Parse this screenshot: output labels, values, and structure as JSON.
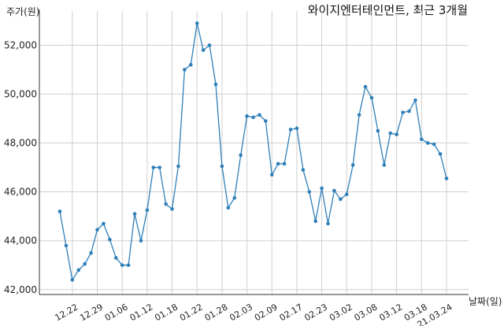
{
  "chart_data": {
    "type": "line",
    "title": "와이지엔터테인먼트, 최근 3개월",
    "ylabel": "주가(원)",
    "xlabel": "날짜(일)",
    "ylim": [
      41800,
      53400
    ],
    "yticks": [
      42000,
      44000,
      46000,
      48000,
      50000,
      52000
    ],
    "ytick_labels": [
      "42,000",
      "44,000",
      "46,000",
      "48,000",
      "50,000",
      "52,000"
    ],
    "xticks": [
      {
        "index": 2,
        "label": "12.22"
      },
      {
        "index": 6,
        "label": "12.29"
      },
      {
        "index": 10,
        "label": "01.06"
      },
      {
        "index": 14,
        "label": "01.12"
      },
      {
        "index": 18,
        "label": "01.18"
      },
      {
        "index": 22,
        "label": "01.22"
      },
      {
        "index": 26,
        "label": "01.28"
      },
      {
        "index": 30,
        "label": "02.03"
      },
      {
        "index": 34,
        "label": "02.09"
      },
      {
        "index": 38,
        "label": "02.17"
      },
      {
        "index": 42,
        "label": "02.23"
      },
      {
        "index": 46,
        "label": "03.02"
      },
      {
        "index": 50,
        "label": "03.08"
      },
      {
        "index": 54,
        "label": "03.12"
      },
      {
        "index": 58,
        "label": "03.18"
      },
      {
        "index": 62,
        "label": "21.03.24"
      }
    ],
    "grid": true,
    "series": [
      {
        "color": "#2e7fb8",
        "values": [
          45200,
          43800,
          42400,
          42800,
          43050,
          43500,
          44450,
          44700,
          44050,
          43300,
          43000,
          43000,
          45100,
          44000,
          45250,
          47000,
          47000,
          45500,
          45300,
          47050,
          51000,
          51200,
          52900,
          51800,
          52000,
          50400,
          47050,
          45350,
          45750,
          47500,
          49100,
          49050,
          49150,
          48900,
          46700,
          47150,
          47150,
          48550,
          48600,
          46900,
          46000,
          44800,
          46150,
          44700,
          46050,
          45700,
          45900,
          47100,
          49150,
          50300,
          49850,
          48500,
          47100,
          48400,
          48350,
          49250,
          49300,
          49750,
          48150,
          48000,
          47950,
          47550,
          46550
        ]
      }
    ]
  }
}
